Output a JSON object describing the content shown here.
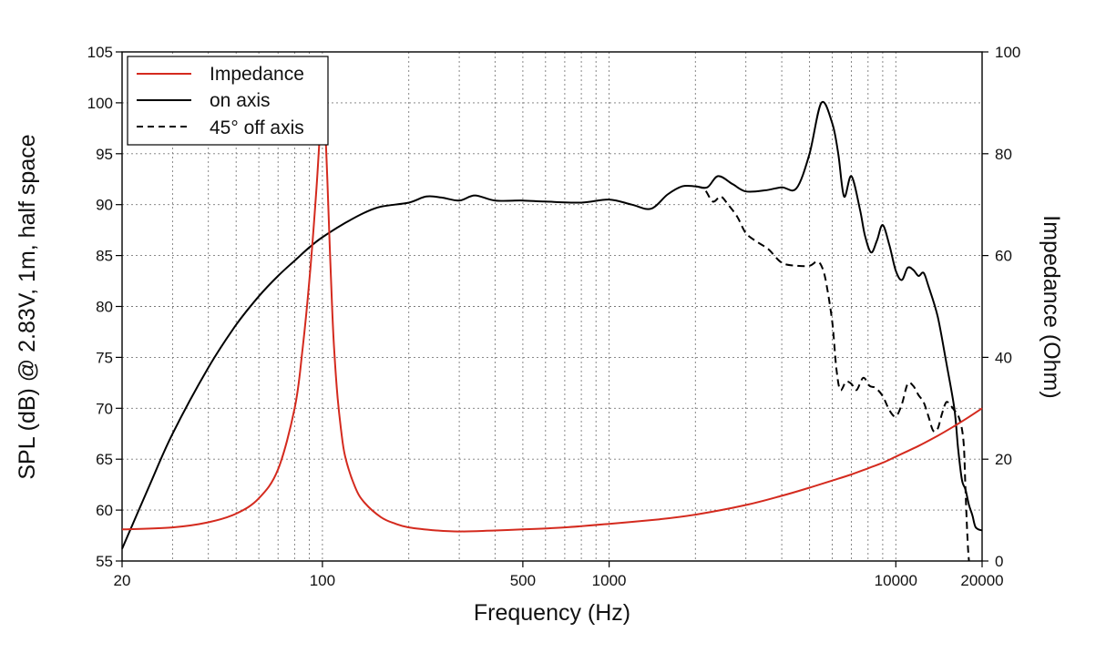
{
  "chart_data": {
    "type": "line",
    "xscale": "log",
    "xlabel": "Frequency (Hz)",
    "ylabel": "SPL (dB) @ 2.83V, 1m, half space",
    "y2label": "Impedance (Ohm)",
    "xlim": [
      20,
      20000
    ],
    "ylim": [
      55,
      105
    ],
    "y2lim": [
      0,
      100
    ],
    "x_tick_labels": [
      {
        "value": 20,
        "label": "20"
      },
      {
        "value": 100,
        "label": "100"
      },
      {
        "value": 500,
        "label": "500"
      },
      {
        "value": 1000,
        "label": "1000"
      },
      {
        "value": 10000,
        "label": "10000"
      },
      {
        "value": 20000,
        "label": "20000"
      }
    ],
    "y_ticks": [
      "55",
      "60",
      "65",
      "70",
      "75",
      "80",
      "85",
      "90",
      "95",
      "100",
      "105"
    ],
    "y2_ticks": [
      "0",
      "20",
      "40",
      "60",
      "80",
      "100"
    ],
    "grid": true,
    "legend_position": "top-left",
    "colors": {
      "impedance": "#d42a1e",
      "on_axis": "#000000",
      "off_axis": "#000000",
      "grid": "#7a7a7a"
    },
    "series": [
      {
        "name": "Impedance",
        "axis": "right",
        "style": "solid",
        "color": "#d42a1e",
        "x": [
          20,
          30,
          40,
          50,
          60,
          70,
          80,
          85,
          90,
          95,
          98,
          100,
          102,
          104,
          106,
          108,
          110,
          113,
          116,
          120,
          130,
          140,
          160,
          180,
          200,
          250,
          300,
          400,
          500,
          700,
          1000,
          1500,
          2000,
          3000,
          4000,
          5000,
          6000,
          7000,
          8000,
          9000,
          10000,
          12000,
          14000,
          16000,
          18000,
          20000
        ],
        "values": [
          6.2,
          6.6,
          7.6,
          9.3,
          12.3,
          18,
          30,
          41,
          55,
          72,
          84,
          89,
          86,
          75,
          62,
          50,
          41,
          32,
          26,
          20.5,
          14.5,
          11.5,
          8.6,
          7.3,
          6.6,
          6.0,
          5.8,
          6.0,
          6.2,
          6.6,
          7.3,
          8.2,
          9.1,
          11.0,
          12.8,
          14.4,
          15.8,
          17.0,
          18.2,
          19.3,
          20.5,
          22.6,
          24.6,
          26.5,
          28.3,
          30.0
        ]
      },
      {
        "name": "on axis",
        "axis": "left",
        "style": "solid",
        "color": "#000000",
        "x": [
          20,
          25,
          30,
          40,
          50,
          60,
          70,
          80,
          90,
          100,
          120,
          140,
          160,
          200,
          230,
          260,
          300,
          340,
          400,
          500,
          600,
          800,
          1000,
          1200,
          1400,
          1600,
          1800,
          2000,
          2200,
          2400,
          2700,
          3000,
          3500,
          4000,
          4500,
          5000,
          5500,
          6000,
          6300,
          6600,
          7000,
          7500,
          7800,
          8200,
          8600,
          9000,
          9500,
          10000,
          10500,
          11000,
          11500,
          12000,
          12500,
          13000,
          14000,
          15000,
          16000,
          16500,
          17000,
          17500,
          18000,
          18500,
          19000,
          20000
        ],
        "values": [
          56.2,
          62.5,
          67.5,
          74.0,
          78.2,
          81.0,
          83.0,
          84.5,
          85.8,
          86.8,
          88.2,
          89.2,
          89.8,
          90.2,
          90.8,
          90.7,
          90.4,
          90.9,
          90.4,
          90.4,
          90.3,
          90.2,
          90.5,
          90.0,
          89.6,
          91.0,
          91.8,
          91.8,
          91.7,
          92.8,
          92.0,
          91.3,
          91.4,
          91.7,
          91.6,
          95.0,
          100.0,
          98.0,
          95.0,
          90.8,
          92.8,
          89.5,
          87.0,
          85.3,
          86.5,
          88.0,
          86.0,
          83.5,
          82.6,
          83.8,
          83.6,
          83.0,
          83.3,
          82.0,
          79.0,
          74.5,
          70.0,
          66.0,
          63.0,
          62.0,
          60.5,
          59.5,
          58.3,
          58.0
        ]
      },
      {
        "name": "45° off axis",
        "axis": "left",
        "style": "dashed",
        "color": "#000000",
        "x": [
          2000,
          2150,
          2300,
          2450,
          2600,
          2800,
          3000,
          3300,
          3600,
          4000,
          4500,
          5000,
          5300,
          5500,
          5700,
          6000,
          6200,
          6400,
          6700,
          7000,
          7300,
          7700,
          8100,
          8500,
          9000,
          9500,
          10000,
          10500,
          11000,
          11500,
          12000,
          12500,
          13000,
          13500,
          14000,
          14500,
          15000,
          15500,
          16000,
          16500,
          17000,
          17300,
          17500,
          17800,
          18000
        ],
        "values": [
          91.8,
          91.5,
          90.3,
          90.8,
          90.0,
          88.8,
          87.2,
          86.3,
          85.6,
          84.3,
          84.0,
          84.0,
          84.4,
          84.0,
          82.5,
          78.5,
          74.0,
          71.8,
          72.6,
          72.4,
          71.8,
          73.0,
          72.2,
          72.0,
          71.2,
          69.8,
          69.2,
          70.4,
          72.4,
          72.2,
          71.3,
          70.6,
          69.2,
          67.8,
          68.0,
          69.5,
          70.6,
          70.3,
          69.8,
          69.3,
          68.0,
          66.0,
          62.0,
          57.0,
          55.0
        ]
      }
    ],
    "legend": [
      {
        "label": "Impedance",
        "style": "solid",
        "color": "#d42a1e"
      },
      {
        "label": "on axis",
        "style": "solid",
        "color": "#000000"
      },
      {
        "label": "45° off axis",
        "style": "dashed",
        "color": "#000000"
      }
    ]
  }
}
